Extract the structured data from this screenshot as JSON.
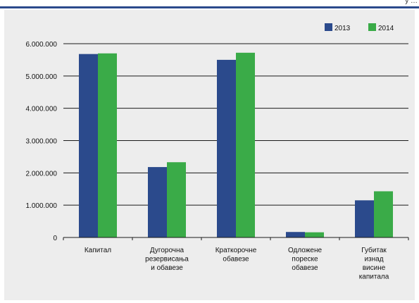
{
  "header": {
    "fragment": "у …"
  },
  "colors": {
    "series_2013": "#2b4a8c",
    "series_2014": "#3aab48",
    "panel": "#ededed",
    "rule": "#2b4a8c"
  },
  "chart_data": {
    "type": "bar",
    "categories": [
      [
        "Капитал"
      ],
      [
        "Дугорочна",
        "резервисања",
        "и обавезе"
      ],
      [
        "Краткорочне",
        "обавезе"
      ],
      [
        "Одложене",
        "пореске",
        "обавезе"
      ],
      [
        "Губитак",
        "изнад",
        "висине",
        "капитала"
      ]
    ],
    "series": [
      {
        "name": "2013",
        "values": [
          5680000,
          2180000,
          5500000,
          170000,
          1150000
        ]
      },
      {
        "name": "2014",
        "values": [
          5700000,
          2330000,
          5720000,
          160000,
          1430000
        ]
      }
    ],
    "yticks": [
      "0",
      "1.000.000",
      "2.000.000",
      "3.000.000",
      "4.000.000",
      "5.000.000",
      "6.000.000"
    ],
    "ylim": [
      0,
      6000000
    ],
    "grid": true,
    "legend_position": "top-right",
    "title": "",
    "xlabel": "",
    "ylabel": ""
  }
}
